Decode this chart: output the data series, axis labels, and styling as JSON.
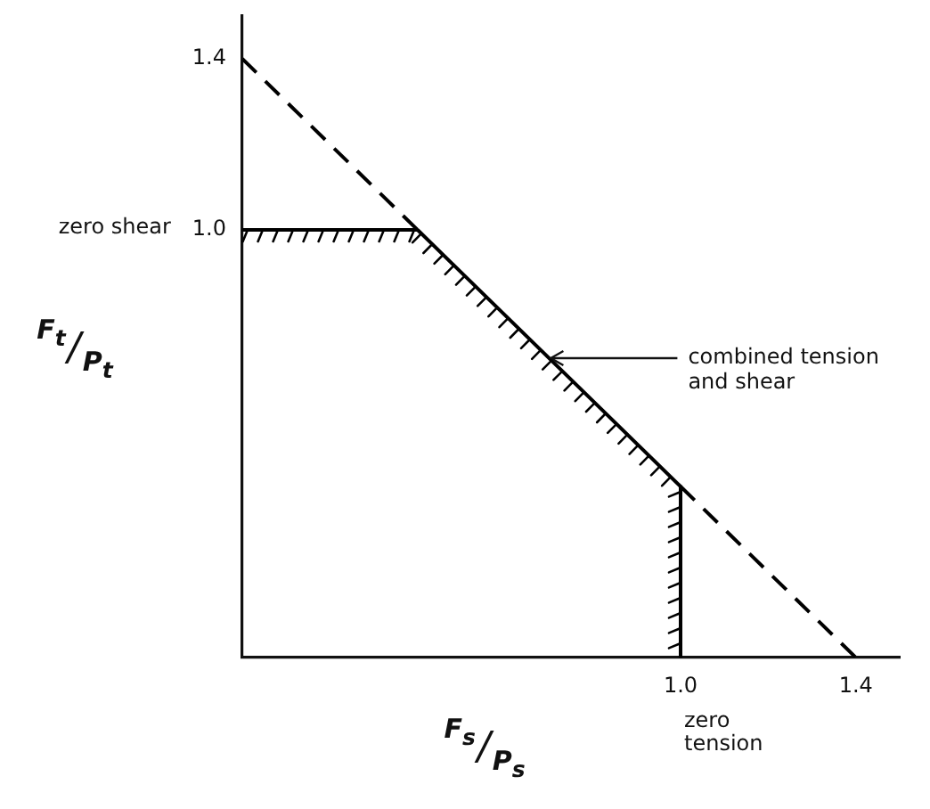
{
  "chart_data": {
    "type": "line",
    "xlabel": "F$_{s}$/P$_{s}$",
    "ylabel": "F$_{t}$/P$_{t}$",
    "xlim": [
      0,
      1.5
    ],
    "ylim": [
      0,
      1.5
    ],
    "xticks": [
      {
        "value": 1,
        "label": "1.0"
      },
      1.4
    ],
    "yticks": [
      {
        "value": 1,
        "label": "1.0"
      },
      1.4
    ],
    "series": [
      {
        "color": "#000000",
        "line_style": "dashed",
        "x": [
          0,
          0.4,
          0.7,
          1,
          1.4
        ],
        "values": [
          1.4,
          1,
          null,
          0.4,
          0
        ]
      },
      {
        "color": "#000000",
        "line_style": "solid",
        "x": [
          0,
          0.4,
          1,
          1
        ],
        "values": [
          1,
          1,
          0.4,
          0
        ]
      }
    ],
    "annotations": [
      "zero shear",
      {
        "text": "zero tension",
        "x": 1,
        "y": 0
      },
      {
        "text": "combined tension and shear",
        "x": 0.7,
        "y": 0.7
      }
    ],
    "marker": "none",
    "grid": false,
    "legend": false
  }
}
